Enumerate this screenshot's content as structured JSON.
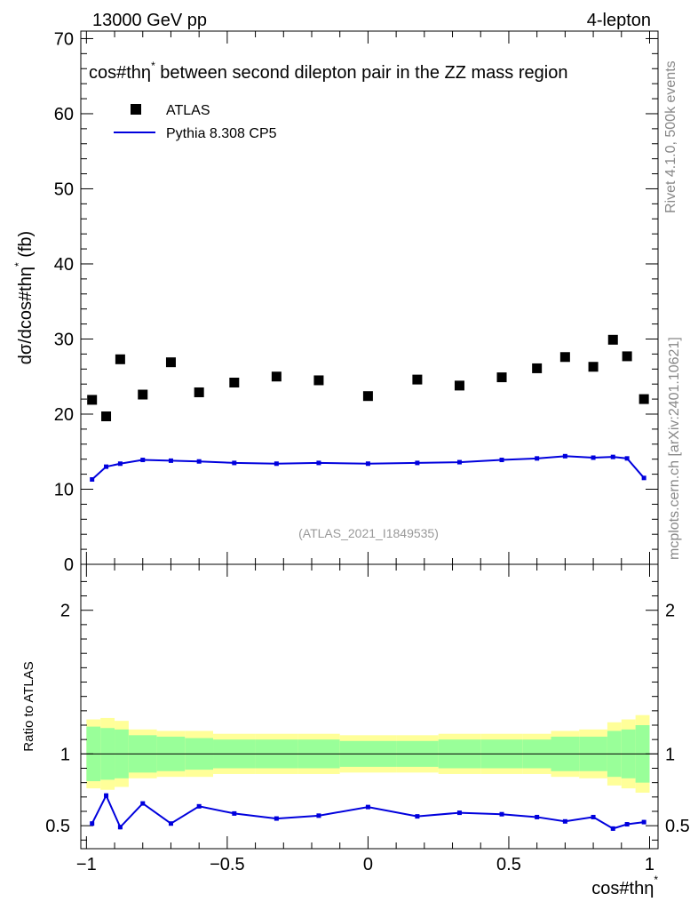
{
  "header": {
    "left": "13000 GeV pp",
    "right": "4-lepton"
  },
  "side_labels": {
    "rivet": "Rivet 4.1.0,  500k events",
    "mcplots": "mcplots.cern.ch [arXiv:2401.10621]"
  },
  "colors": {
    "data": "#000000",
    "mc": "#0000dd",
    "band_inner": "#99ff99",
    "band_outer": "#ffff99"
  },
  "chart_data": [
    {
      "type": "scatter",
      "title": "cos#thη* between second dilepton pair in the ZZ mass region",
      "title_main": "cos#thη",
      "title_sup": "*",
      "title_rest": " between second dilepton pair in the ZZ mass region",
      "ylabel": "dσ/dcos#thη* (fb)",
      "ylabel_main": "dσ/dcos#thη",
      "ylabel_sup": "*",
      "ylabel_rest": " (fb)",
      "ylim": [
        0,
        71
      ],
      "yticks": [
        "0",
        "10",
        "20",
        "30",
        "40",
        "50",
        "60",
        "70"
      ],
      "analysis_label": "(ATLAS_2021_I1849535)",
      "legend": [
        {
          "name": "ATLAS",
          "kind": "marker"
        },
        {
          "name": "Pythia 8.308 CP5",
          "kind": "line"
        }
      ],
      "x": [
        -0.98,
        -0.93,
        -0.88,
        -0.8,
        -0.7,
        -0.6,
        -0.475,
        -0.325,
        -0.175,
        0.0,
        0.175,
        0.325,
        0.475,
        0.6,
        0.7,
        0.8,
        0.87,
        0.92,
        0.98
      ],
      "series": [
        {
          "name": "ATLAS",
          "values": [
            21.9,
            19.7,
            27.3,
            22.6,
            26.9,
            22.9,
            24.2,
            25.0,
            24.5,
            22.4,
            24.6,
            23.8,
            24.9,
            26.1,
            27.6,
            26.3,
            29.9,
            27.7,
            22.0
          ]
        },
        {
          "name": "Pythia 8.308 CP5",
          "values": [
            11.3,
            13.0,
            13.4,
            13.9,
            13.8,
            13.7,
            13.5,
            13.4,
            13.5,
            13.4,
            13.5,
            13.6,
            13.9,
            14.1,
            14.4,
            14.2,
            14.3,
            14.1,
            11.5
          ]
        }
      ]
    },
    {
      "type": "line",
      "ylabel": "Ratio to ATLAS",
      "xlabel": "cos#thη*",
      "xlabel_main": "cos#thη",
      "xlabel_sup": "*",
      "xlim": [
        -1.02,
        1.03
      ],
      "ylim": [
        0.34,
        2.32
      ],
      "xticks": [
        "−1",
        "−0.5",
        "0",
        "0.5",
        "1"
      ],
      "xtick_values": [
        -1,
        -0.5,
        0,
        0.5,
        1
      ],
      "yticks": [
        "0.5",
        "1",
        "2"
      ],
      "ytick_values": [
        0.5,
        1,
        2
      ],
      "reference_line": 1,
      "bin_edges": [
        -1.0,
        -0.95,
        -0.9,
        -0.85,
        -0.75,
        -0.65,
        -0.55,
        -0.4,
        -0.25,
        -0.1,
        0.1,
        0.25,
        0.4,
        0.55,
        0.65,
        0.75,
        0.85,
        0.9,
        0.95,
        1.0
      ],
      "band_inner_halfwidth": [
        0.19,
        0.18,
        0.17,
        0.13,
        0.12,
        0.11,
        0.1,
        0.1,
        0.1,
        0.09,
        0.09,
        0.1,
        0.1,
        0.1,
        0.12,
        0.12,
        0.16,
        0.17,
        0.2
      ],
      "band_outer_halfwidth": [
        0.24,
        0.25,
        0.23,
        0.17,
        0.16,
        0.16,
        0.14,
        0.14,
        0.14,
        0.13,
        0.13,
        0.14,
        0.14,
        0.14,
        0.16,
        0.17,
        0.22,
        0.24,
        0.27
      ],
      "x": [
        -0.98,
        -0.93,
        -0.88,
        -0.8,
        -0.7,
        -0.6,
        -0.475,
        -0.325,
        -0.175,
        0.0,
        0.175,
        0.325,
        0.475,
        0.6,
        0.7,
        0.8,
        0.87,
        0.92,
        0.98
      ],
      "series": [
        {
          "name": "Pythia 8.308 CP5",
          "values": [
            0.515,
            0.71,
            0.49,
            0.655,
            0.515,
            0.635,
            0.585,
            0.55,
            0.57,
            0.63,
            0.565,
            0.59,
            0.58,
            0.56,
            0.53,
            0.56,
            0.48,
            0.51,
            0.525
          ],
          "errors": [
            0.015,
            0.015,
            0.015,
            0.01,
            0.01,
            0.01,
            0.008,
            0.008,
            0.008,
            0.008,
            0.008,
            0.008,
            0.008,
            0.01,
            0.01,
            0.01,
            0.015,
            0.015,
            0.015
          ]
        }
      ]
    }
  ]
}
